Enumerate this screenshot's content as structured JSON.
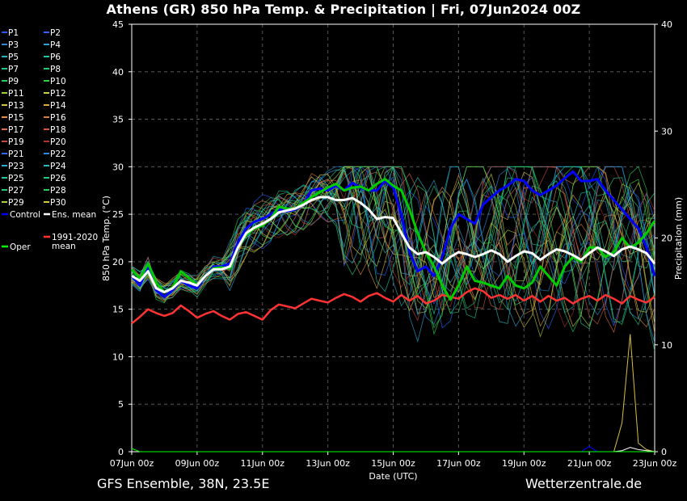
{
  "title": "Athens  (GR)  850 hPa Temp. & Precipitation | Fri, 07Jun2024 00Z",
  "footer": {
    "model": "GFS Ensemble, 38N, 23.5E",
    "source": "Wetterzentrale.de"
  },
  "chart_data": {
    "type": "line",
    "title": "Athens  (GR)  850 hPa Temp. & Precipitation | Fri, 07Jun2024 00Z",
    "xlabel": "Date (UTC)",
    "ylabel": "850 hPa Temp. (°C)",
    "y2label": "Precipitation (mm)",
    "ylim": [
      0,
      45
    ],
    "y2lim": [
      0,
      40
    ],
    "yticks": [
      0,
      5,
      10,
      15,
      20,
      25,
      30,
      35,
      40,
      45
    ],
    "y2ticks": [
      0,
      10,
      20,
      30,
      40
    ],
    "xticks": [
      "07Jun 00z",
      "09Jun 00z",
      "11Jun 00z",
      "13Jun 00z",
      "15Jun 00z",
      "17Jun 00z",
      "19Jun 00z",
      "21Jun 00z",
      "23Jun 00z"
    ],
    "x_step_hours": 6,
    "grid": true,
    "legend_position": "left",
    "colors": {
      "control": "#0000ff",
      "ens_mean": "#ffffff",
      "climate": "#ff3333",
      "oper": "#00cc00",
      "background": "#000000"
    },
    "legend": [
      {
        "label": "P1",
        "color": "#1e5aff"
      },
      {
        "label": "P2",
        "color": "#2a6cff"
      },
      {
        "label": "P3",
        "color": "#2f88d9"
      },
      {
        "label": "P4",
        "color": "#2aa4d8"
      },
      {
        "label": "P5",
        "color": "#22b6c0"
      },
      {
        "label": "P6",
        "color": "#1ec8a8"
      },
      {
        "label": "P7",
        "color": "#22c890"
      },
      {
        "label": "P8",
        "color": "#20cc78"
      },
      {
        "label": "P9",
        "color": "#24d060"
      },
      {
        "label": "P10",
        "color": "#30d040"
      },
      {
        "label": "P11",
        "color": "#9ad23c"
      },
      {
        "label": "P12",
        "color": "#c8d040"
      },
      {
        "label": "P13",
        "color": "#d8c040"
      },
      {
        "label": "P14",
        "color": "#e0a840"
      },
      {
        "label": "P15",
        "color": "#e29048"
      },
      {
        "label": "P16",
        "color": "#d87c40"
      },
      {
        "label": "P17",
        "color": "#e06c3c"
      },
      {
        "label": "P18",
        "color": "#d05a3a"
      },
      {
        "label": "P19",
        "color": "#c84848"
      },
      {
        "label": "P20",
        "color": "#b03030"
      },
      {
        "label": "P21",
        "color": "#2c6aff"
      },
      {
        "label": "P22",
        "color": "#2a8ce0"
      },
      {
        "label": "P23",
        "color": "#30a8d0"
      },
      {
        "label": "P24",
        "color": "#28bcc0"
      },
      {
        "label": "P25",
        "color": "#22c8a0"
      },
      {
        "label": "P26",
        "color": "#20cc88"
      },
      {
        "label": "P27",
        "color": "#24cc70"
      },
      {
        "label": "P28",
        "color": "#28d058"
      },
      {
        "label": "P29",
        "color": "#a8d040"
      },
      {
        "label": "P30",
        "color": "#d8c83c"
      },
      {
        "label": "Control",
        "color": "#0000ff"
      },
      {
        "label": "Ens. mean",
        "color": "#ffffff"
      },
      {
        "label": "1991-2020\nmean",
        "color": "#ff3333"
      },
      {
        "label": "Oper",
        "color": "#00ff00"
      }
    ],
    "series": [
      {
        "name": "Control",
        "values": [
          18.5,
          17.5,
          19.5,
          17,
          16.3,
          17,
          18,
          17.5,
          17.2,
          18.5,
          19.5,
          19.5,
          19.8,
          22,
          23.5,
          24.2,
          24.5,
          25,
          25.5,
          25.3,
          25.5,
          26,
          27.5,
          27.7,
          27.5,
          28,
          27.5,
          28.3,
          27.8,
          27.5,
          27.5,
          28.5,
          27.8,
          25,
          21,
          19,
          19.5,
          18.5,
          20.5,
          23.5,
          25,
          24.5,
          24,
          26,
          26.8,
          27.5,
          28,
          28.7,
          28.5,
          27.5,
          27,
          27.5,
          28,
          28.8,
          29.5,
          28.5,
          28.5,
          28.7,
          27.5,
          26.5,
          25.5,
          24.5,
          23.5,
          21.5,
          18.5,
          19.5,
          19
        ]
      },
      {
        "name": "Ens. mean",
        "values": [
          18.5,
          18,
          19,
          17.2,
          16.8,
          17.2,
          18,
          17.8,
          17.5,
          18.5,
          19.2,
          19.2,
          19.5,
          21.5,
          23,
          23.6,
          24,
          24.5,
          25.2,
          25.4,
          25.6,
          26,
          26.5,
          26.8,
          26.8,
          26.5,
          26.5,
          26.7,
          26.2,
          25.5,
          24.5,
          24.7,
          24.6,
          23,
          21.5,
          20.8,
          21,
          20.5,
          19.8,
          20.5,
          21,
          20.8,
          20.5,
          20.8,
          21.2,
          20.8,
          20,
          20.6,
          21.1,
          20.9,
          20.2,
          20.8,
          21.3,
          21.1,
          20.7,
          20.2,
          20.9,
          21.5,
          21.1,
          20.6,
          21.3,
          21.6,
          21.3,
          20.9,
          19.8,
          20.6,
          20.3
        ]
      },
      {
        "name": "1991-2020 mean",
        "values": [
          13.5,
          14.2,
          15,
          14.6,
          14.3,
          14.6,
          15.4,
          14.8,
          14.1,
          14.5,
          14.8,
          14.3,
          13.9,
          14.5,
          14.7,
          14.3,
          13.9,
          14.9,
          15.5,
          15.3,
          15.1,
          15.6,
          16.1,
          15.9,
          15.7,
          16.2,
          16.6,
          16.3,
          15.8,
          16.4,
          16.7,
          16.2,
          15.8,
          16.5,
          15.9,
          16.4,
          15.6,
          15.9,
          16.5,
          16.3,
          16.1,
          16.8,
          17.2,
          16.9,
          16.2,
          16.5,
          16.1,
          16.5,
          15.9,
          16.4,
          15.8,
          16.4,
          15.9,
          16.2,
          15.6,
          16.1,
          16.4,
          15.9,
          16.5,
          16.1,
          15.6,
          16.4,
          16,
          15.7,
          16.3,
          16.6,
          16.4
        ]
      },
      {
        "name": "Oper",
        "values": [
          19.2,
          18.2,
          19.8,
          17.8,
          16.8,
          17.3,
          19,
          18.3,
          17.5,
          18.5,
          19.3,
          19.4,
          19.3,
          21.5,
          22.8,
          23.5,
          23.8,
          24.5,
          25.8,
          25.6,
          25.6,
          26.2,
          26.8,
          27.3,
          27.8,
          28.2,
          27.5,
          27.8,
          27.9,
          27.5,
          28.2,
          28.7,
          28,
          27.5,
          25.5,
          23,
          21,
          19.5,
          17.5,
          16,
          17.5,
          19.5,
          18,
          17.8,
          17.5,
          17.2,
          18.5,
          17.5,
          17.2,
          17.8,
          19.5,
          18.5,
          17.5,
          19.5,
          20.5,
          20,
          21.5,
          21.5,
          20.5,
          21,
          22.5,
          21.5,
          22,
          23,
          24.3,
          24.3,
          23.8,
          24,
          24.5,
          24.8,
          22.5
        ]
      }
    ],
    "precipitation": [
      {
        "name": "P13",
        "color": "#d8c040",
        "values": [
          0,
          0,
          0,
          0,
          0,
          0,
          0,
          0,
          0,
          0,
          0,
          0,
          0,
          0,
          0,
          0,
          0,
          0,
          0,
          0,
          0,
          0,
          0,
          0,
          0,
          0,
          0,
          0,
          0,
          0,
          0,
          0,
          0,
          0,
          0,
          0,
          0,
          0,
          0,
          0,
          0,
          0,
          0,
          0,
          0,
          0,
          0,
          0,
          0,
          0,
          0,
          0,
          0,
          0,
          0,
          0,
          0,
          0,
          0,
          0,
          2.7,
          11,
          0.8,
          0.2,
          0,
          4,
          0.3,
          0
        ]
      },
      {
        "name": "Control",
        "color": "#0000ff",
        "values": [
          0,
          0,
          0,
          0,
          0,
          0,
          0,
          0,
          0,
          0,
          0,
          0,
          0,
          0,
          0,
          0,
          0,
          0,
          0,
          0,
          0,
          0,
          0,
          0,
          0,
          0,
          0,
          0,
          0,
          0,
          0,
          0,
          0,
          0,
          0,
          0,
          0,
          0,
          0,
          0,
          0,
          0,
          0,
          0,
          0,
          0,
          0,
          0,
          0,
          0,
          0,
          0,
          0,
          0,
          0,
          0,
          0.5,
          0,
          0,
          0,
          0,
          0,
          0,
          0,
          0,
          0,
          0
        ]
      },
      {
        "name": "Ens. mean",
        "color": "#ffffff",
        "values": [
          0,
          0,
          0,
          0,
          0,
          0,
          0,
          0,
          0,
          0,
          0,
          0,
          0,
          0,
          0,
          0,
          0,
          0,
          0,
          0,
          0,
          0,
          0,
          0,
          0,
          0,
          0,
          0,
          0,
          0,
          0,
          0,
          0,
          0,
          0,
          0,
          0,
          0,
          0,
          0,
          0,
          0,
          0,
          0,
          0,
          0,
          0,
          0,
          0,
          0,
          0,
          0,
          0,
          0,
          0,
          0,
          0,
          0,
          0,
          0,
          0.1,
          0.4,
          0.2,
          0.1,
          0,
          0.2,
          0,
          0
        ]
      },
      {
        "name": "Oper",
        "color": "#00ff00",
        "values": [
          0.3,
          0,
          0,
          0,
          0,
          0,
          0,
          0,
          0,
          0,
          0,
          0,
          0,
          0,
          0,
          0,
          0,
          0,
          0,
          0,
          0,
          0,
          0,
          0,
          0,
          0,
          0,
          0,
          0,
          0,
          0,
          0,
          0,
          0,
          0,
          0,
          0,
          0,
          0,
          0,
          0,
          0,
          0,
          0,
          0,
          0,
          0,
          0,
          0,
          0,
          0,
          0,
          0,
          0,
          0,
          0,
          0,
          0,
          0,
          0,
          0,
          0,
          0,
          0,
          0,
          0,
          0
        ]
      }
    ]
  }
}
